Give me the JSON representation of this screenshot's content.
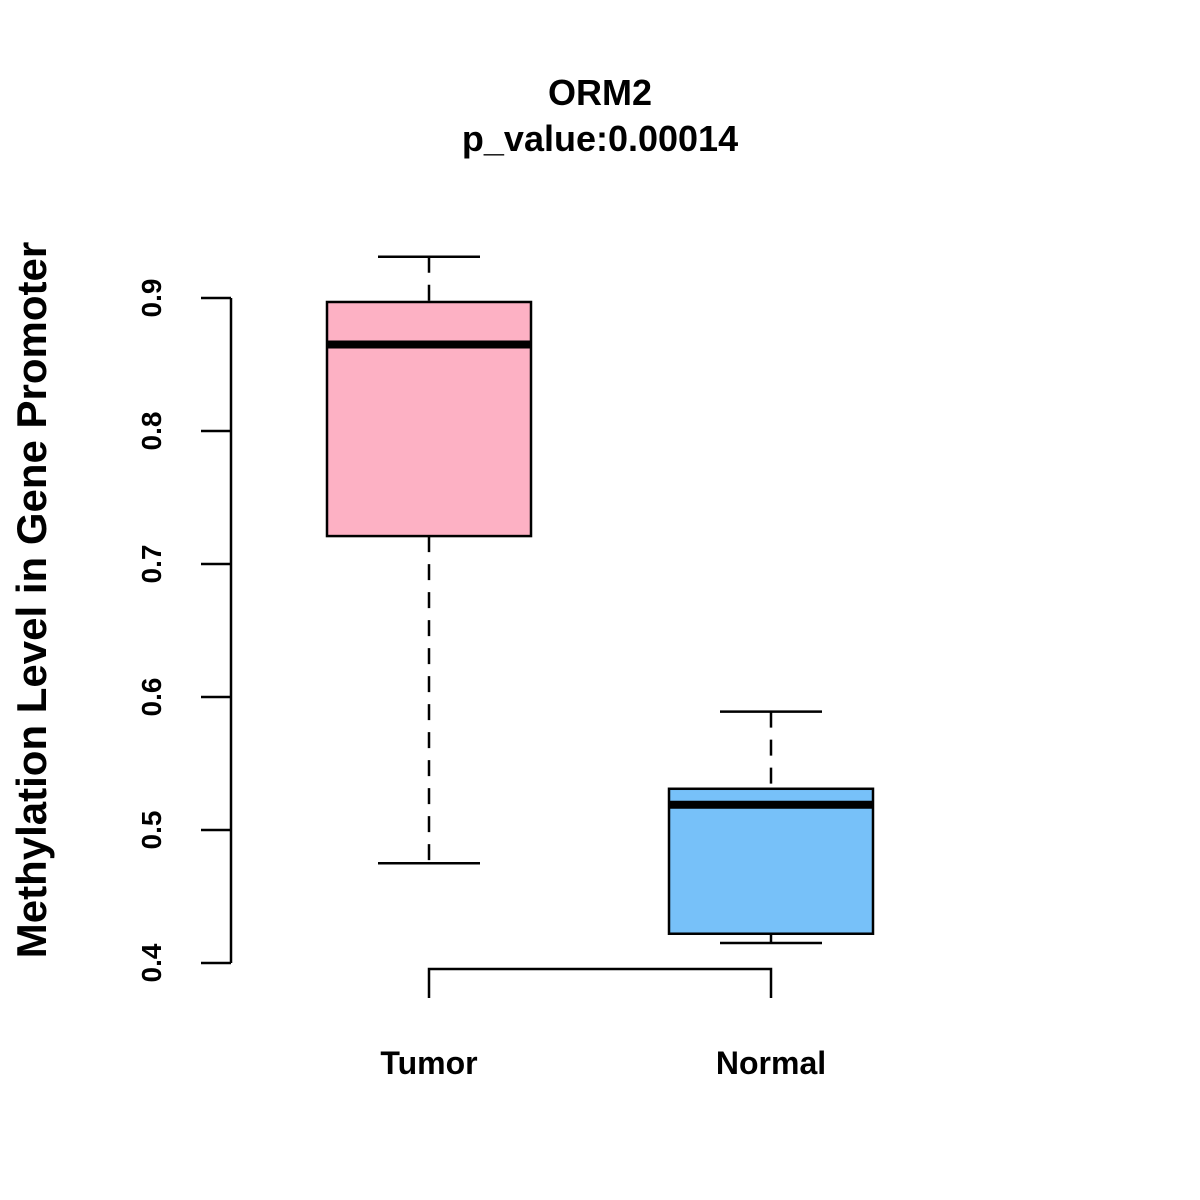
{
  "chart_data": {
    "type": "boxplot",
    "title": "ORM2",
    "subtitle": "p_value:0.00014",
    "xlabel": "",
    "ylabel": "Methylation Level in Gene Promoter",
    "ylim": [
      0.4,
      0.9
    ],
    "yticks": [
      0.4,
      0.5,
      0.6,
      0.7,
      0.8,
      0.9
    ],
    "ytick_labels": [
      "0.4",
      "0.5",
      "0.6",
      "0.7",
      "0.8",
      "0.9"
    ],
    "categories": [
      "Tumor",
      "Normal"
    ],
    "boxes": [
      {
        "name": "Tumor",
        "whisker_low": 0.475,
        "q1": 0.721,
        "median": 0.865,
        "q3": 0.897,
        "whisker_high": 0.931,
        "color": "#FDB1C4"
      },
      {
        "name": "Normal",
        "whisker_low": 0.415,
        "q1": 0.422,
        "median": 0.519,
        "q3": 0.531,
        "whisker_high": 0.589,
        "color": "#77C1F9"
      }
    ],
    "significance_bracket": {
      "from": "Tumor",
      "to": "Normal"
    },
    "grid": false
  }
}
